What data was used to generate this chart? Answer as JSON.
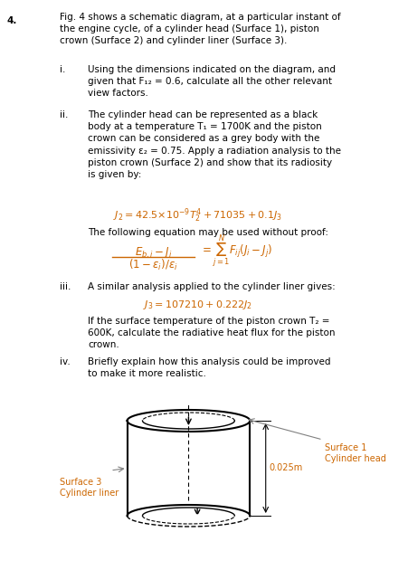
{
  "bg_color": "#ffffff",
  "text_color": "#000000",
  "orange_color": "#cc6600",
  "question_num": "4.",
  "intro_text": "Fig. 4 shows a schematic diagram, at a particular instant of\nthe engine cycle, of a cylinder head (Surface 1), piston\ncrown (Surface 2) and cylinder liner (Surface 3).",
  "part_i_label": "i.",
  "part_i_text": "Using the dimensions indicated on the diagram, and\ngiven that F₁₂ = 0.6, calculate all the other relevant\nview factors.",
  "part_ii_label": "ii.",
  "part_ii_text": "The cylinder head can be represented as a black\nbody at a temperature T₁ = 1700K and the piston\ncrown can be considered as a grey body with the\nemissivity ε₂ = 0.75. Apply a radiation analysis to the\npiston crown (Surface 2) and show that its radiosity\nis given by:",
  "part_ii_eq": "J₂ = 42.5×10⁻⁹T₂⁴ + 71035 + 0.1J₃",
  "proof_text": "The following equation may be used without proof:",
  "fraction_num": "E_{b,i} - J_i",
  "fraction_den": "(1 - \\varepsilon_i)/\\varepsilon_i",
  "sum_eq": "= \\sum_{j=1}^{N} F_{ij}(J_i - J_j)",
  "part_iii_label": "iii.",
  "part_iii_text": "A similar analysis applied to the cylinder liner gives:",
  "part_iii_eq": "J₃ = 107210 + 0.222J₂",
  "part_iii_extra": "If the surface temperature of the piston crown T₂ =\n600K, calculate the radiative heat flux for the piston\ncrown.",
  "part_iv_label": "iv.",
  "part_iv_text": "Briefly explain how this analysis could be improved\nto make it more realistic.",
  "diag_surf1": "Surface 1\nCylinder head",
  "diag_surf3": "Surface 3\nCylinder liner",
  "diag_dim": "0.025m"
}
